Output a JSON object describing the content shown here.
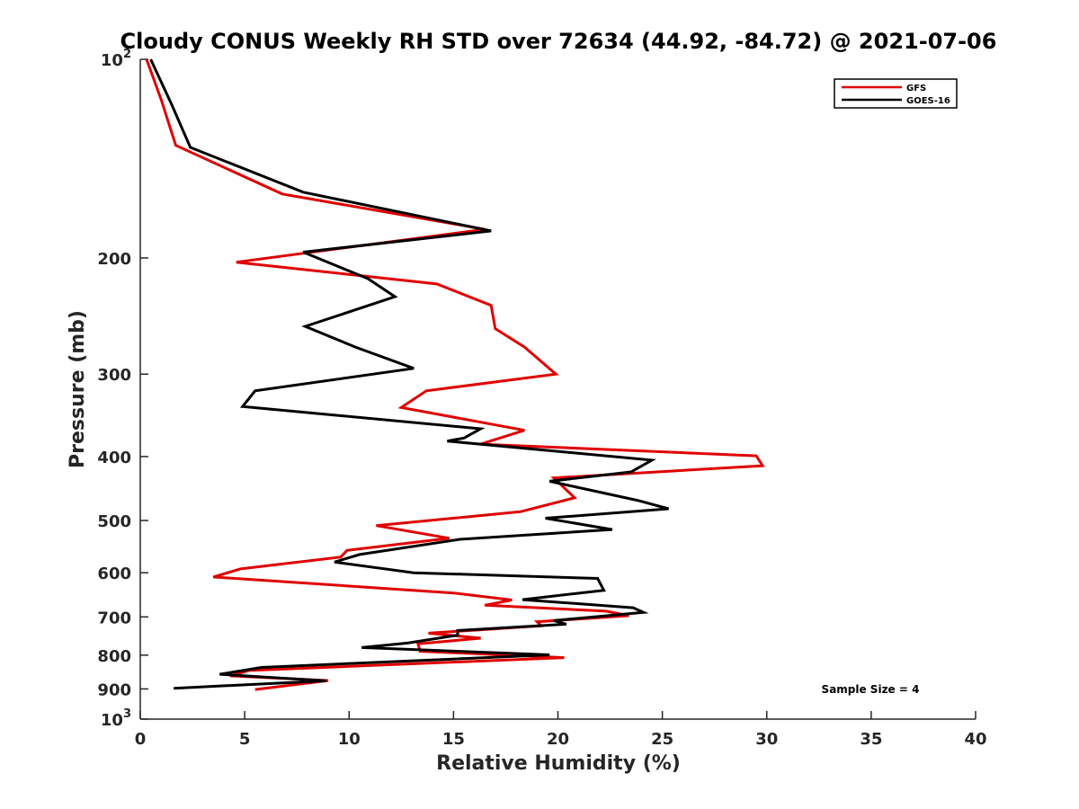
{
  "chart_data": {
    "type": "line",
    "title": "Cloudy CONUS Weekly RH STD over 72634 (44.92, -84.72) @ 2021-07-06",
    "xlabel": "Relative Humidity (%)",
    "ylabel": "Pressure (mb)",
    "xlim": [
      0,
      40
    ],
    "ylim": [
      100,
      1000
    ],
    "yscale": "log",
    "y_inverted": true,
    "grid": false,
    "legend_position": "top-right",
    "x_ticks": [
      "0",
      "5",
      "10",
      "15",
      "20",
      "25",
      "30",
      "35",
      "40"
    ],
    "x_tick_values": [
      0,
      5,
      10,
      15,
      20,
      25,
      30,
      35,
      40
    ],
    "y_ticks": [
      {
        "value": 100,
        "base": "10",
        "exp": "2"
      },
      {
        "value": 200,
        "label": "200"
      },
      {
        "value": 300,
        "label": "300"
      },
      {
        "value": 400,
        "label": "400"
      },
      {
        "value": 500,
        "label": "500"
      },
      {
        "value": 600,
        "label": "600"
      },
      {
        "value": 700,
        "label": "700"
      },
      {
        "value": 800,
        "label": "800"
      },
      {
        "value": 900,
        "label": "900"
      },
      {
        "value": 1000,
        "base": "10",
        "exp": "3"
      }
    ],
    "annotation": "Sample Size = 4",
    "series": [
      {
        "name": "GFS",
        "color": "#e00000",
        "points": [
          [
            0.3,
            100
          ],
          [
            1.0,
            115
          ],
          [
            1.7,
            135
          ],
          [
            6.8,
            160
          ],
          [
            16.5,
            181
          ],
          [
            4.6,
            203
          ],
          [
            14.2,
            219
          ],
          [
            16.8,
            236
          ],
          [
            17.0,
            256
          ],
          [
            18.4,
            273
          ],
          [
            19.9,
            300
          ],
          [
            13.7,
            318
          ],
          [
            12.5,
            337
          ],
          [
            18.4,
            365
          ],
          [
            16.3,
            383
          ],
          [
            29.5,
            399
          ],
          [
            29.8,
            413
          ],
          [
            19.8,
            431
          ],
          [
            20.8,
            462
          ],
          [
            18.2,
            485
          ],
          [
            11.3,
            509
          ],
          [
            14.8,
            532
          ],
          [
            9.9,
            555
          ],
          [
            9.6,
            568
          ],
          [
            4.8,
            592
          ],
          [
            3.5,
            609
          ],
          [
            15.0,
            644
          ],
          [
            17.8,
            660
          ],
          [
            16.5,
            672
          ],
          [
            22.3,
            686
          ],
          [
            23.4,
            697
          ],
          [
            19.0,
            712
          ],
          [
            19.2,
            722
          ],
          [
            13.8,
            741
          ],
          [
            16.3,
            754
          ],
          [
            13.3,
            769
          ],
          [
            13.4,
            789
          ],
          [
            20.3,
            807
          ],
          [
            5.2,
            844
          ],
          [
            4.3,
            860
          ],
          [
            9.0,
            874
          ],
          [
            5.5,
            902
          ]
        ]
      },
      {
        "name": "GOES-16",
        "color": "#000000",
        "points": [
          [
            0.5,
            100
          ],
          [
            1.5,
            117
          ],
          [
            2.4,
            136
          ],
          [
            7.8,
            159
          ],
          [
            16.8,
            182
          ],
          [
            7.8,
            196
          ],
          [
            10.9,
            215
          ],
          [
            12.2,
            229
          ],
          [
            7.9,
            254
          ],
          [
            10.3,
            273
          ],
          [
            13.1,
            294
          ],
          [
            5.5,
            318
          ],
          [
            4.9,
            336
          ],
          [
            16.3,
            363
          ],
          [
            15.5,
            375
          ],
          [
            14.7,
            379
          ],
          [
            24.5,
            405
          ],
          [
            23.5,
            422
          ],
          [
            19.6,
            436
          ],
          [
            23.8,
            466
          ],
          [
            25.3,
            480
          ],
          [
            19.4,
            496
          ],
          [
            22.6,
            516
          ],
          [
            15.3,
            534
          ],
          [
            10.5,
            563
          ],
          [
            9.3,
            578
          ],
          [
            13.1,
            600
          ],
          [
            21.9,
            612
          ],
          [
            22.2,
            638
          ],
          [
            18.3,
            659
          ],
          [
            23.6,
            678
          ],
          [
            24.1,
            689
          ],
          [
            19.8,
            709
          ],
          [
            20.4,
            718
          ],
          [
            15.2,
            734
          ],
          [
            15.2,
            746
          ],
          [
            12.8,
            767
          ],
          [
            10.6,
            779
          ],
          [
            19.6,
            799
          ],
          [
            5.8,
            835
          ],
          [
            3.8,
            855
          ],
          [
            8.9,
            875
          ],
          [
            1.6,
            898
          ]
        ]
      }
    ]
  }
}
